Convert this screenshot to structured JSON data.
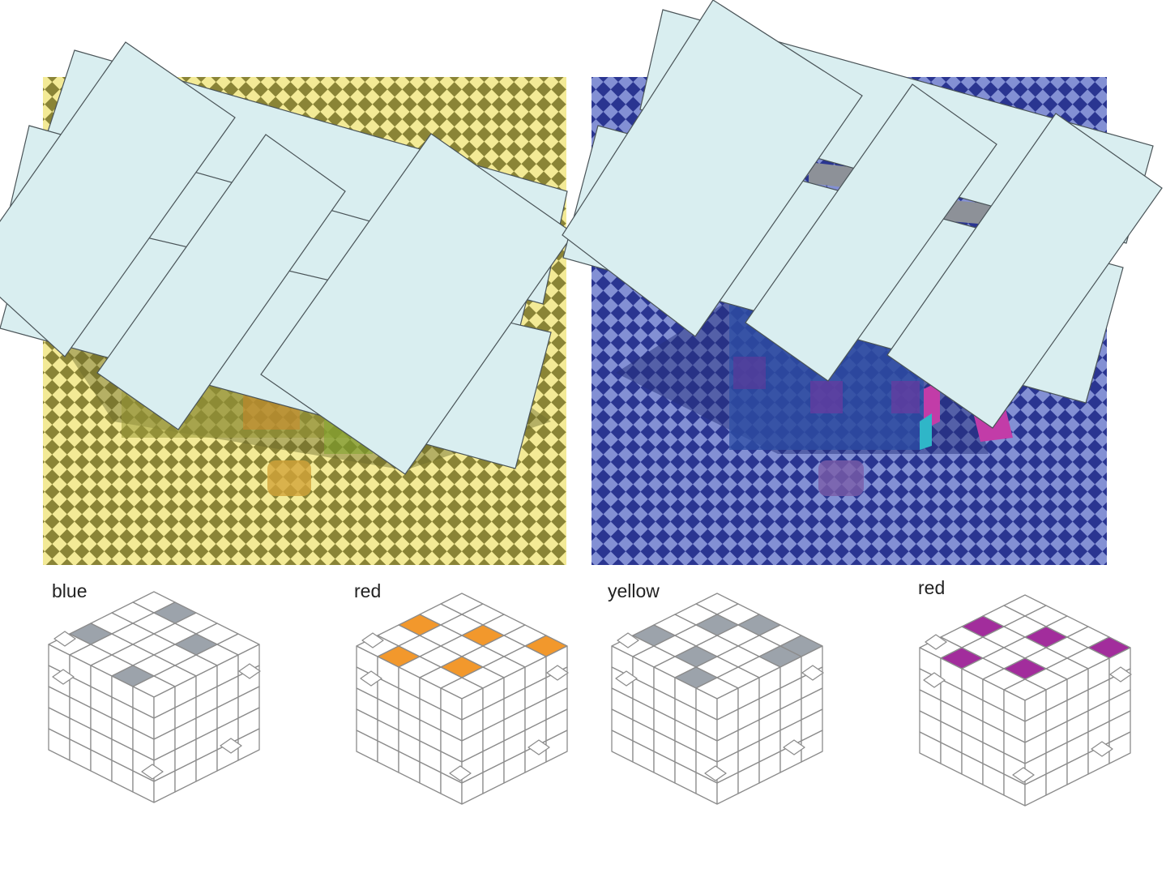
{
  "captions": [
    "blue",
    "red",
    "yellow",
    "red"
  ],
  "panels": [
    {
      "background_color": "#e8de80",
      "checker_dark": "#8a8436",
      "checker_light": "#f3ea96",
      "shadow_tint": "#6b6a2a"
    },
    {
      "background_color": "#35409a",
      "checker_dark": "#2a3591",
      "checker_light": "#8390d4",
      "shadow_tint": "#262f7c"
    }
  ],
  "overlay_card_color": "#d9eef0",
  "highlight_colors": {
    "gray": "#9ca3ab",
    "orange": "#f2982c",
    "magenta": "#a22d9c"
  }
}
